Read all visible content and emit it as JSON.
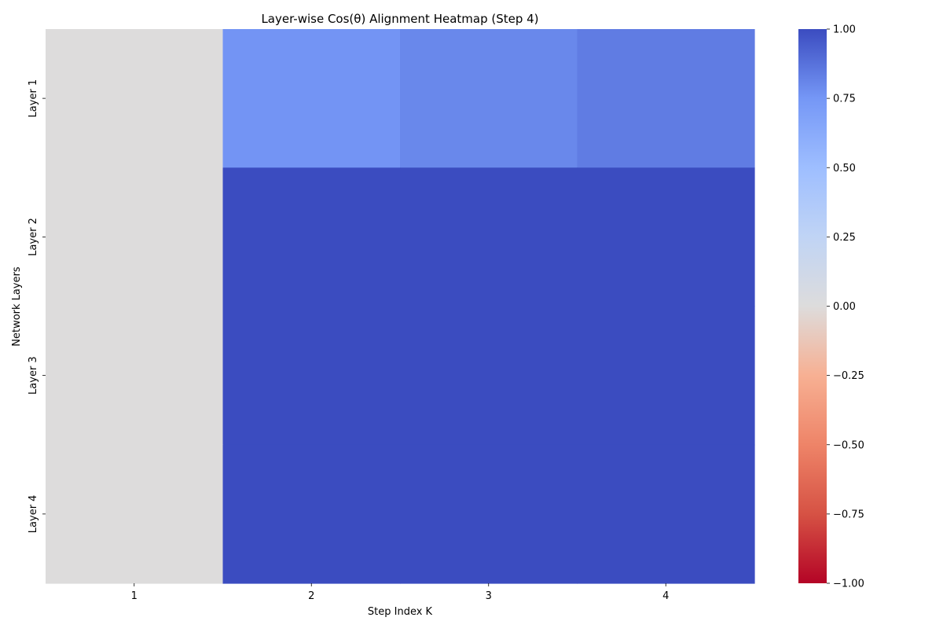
{
  "chart_data": {
    "type": "heatmap",
    "title": "Layer-wise Cos(θ) Alignment Heatmap (Step 4)",
    "xlabel": "Step Index K",
    "ylabel": "Network Layers",
    "x_categories": [
      "1",
      "2",
      "3",
      "4"
    ],
    "y_categories": [
      "Layer 1",
      "Layer 2",
      "Layer 3",
      "Layer 4"
    ],
    "values": [
      [
        0.0,
        0.76,
        0.8,
        0.84
      ],
      [
        0.0,
        1.0,
        1.0,
        1.0
      ],
      [
        0.0,
        1.0,
        1.0,
        1.0
      ],
      [
        0.0,
        1.0,
        1.0,
        1.0
      ]
    ],
    "zlim": [
      -1.0,
      1.0
    ],
    "colormap": "coolwarm",
    "colorbar": {
      "ticks": [
        1.0,
        0.75,
        0.5,
        0.25,
        0.0,
        -0.25,
        -0.5,
        -0.75,
        -1.0
      ],
      "tick_labels": [
        "1.00",
        "0.75",
        "0.50",
        "0.25",
        "0.00",
        "−0.25",
        "−0.50",
        "−0.75",
        "−1.00"
      ]
    },
    "grid": false,
    "colors": {
      "low": "#b40426",
      "mid": "#dddcdc",
      "high": "#3b4cc0"
    }
  }
}
